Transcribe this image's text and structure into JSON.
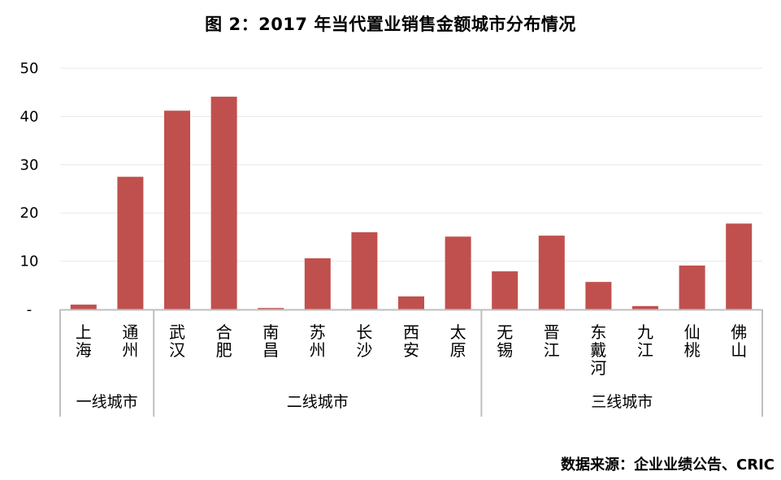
{
  "title": "图 2：2017 年当代置业销售金额城市分布情况",
  "source": "数据来源：企业业绩公告、CRIC",
  "colors": {
    "bar": "#c0504d",
    "gridline": "#e8e8e8",
    "axis": "#bfbfbf"
  },
  "chart_data": {
    "type": "bar",
    "title": "图 2：2017 年当代置业销售金额城市分布情况",
    "xlabel": "",
    "ylabel": "",
    "ylim": [
      0,
      50
    ],
    "yticks": [
      0,
      10,
      20,
      30,
      40,
      50
    ],
    "ytick_labels": [
      "-",
      "10",
      "20",
      "30",
      "40",
      "50"
    ],
    "grid": true,
    "categories": [
      "上海",
      "通州",
      "武汉",
      "合肥",
      "南昌",
      "苏州",
      "长沙",
      "西安",
      "太原",
      "无锡",
      "晋江",
      "东戴河",
      "九江",
      "仙桃",
      "佛山"
    ],
    "values": [
      1.0,
      27.5,
      41.2,
      44.1,
      0.3,
      10.6,
      16.0,
      2.7,
      15.1,
      7.9,
      15.3,
      5.7,
      0.7,
      9.1,
      17.8
    ],
    "groups": [
      {
        "name": "一线城市",
        "start": 0,
        "end": 1
      },
      {
        "name": "二线城市",
        "start": 2,
        "end": 8
      },
      {
        "name": "三线城市",
        "start": 9,
        "end": 14
      }
    ]
  }
}
